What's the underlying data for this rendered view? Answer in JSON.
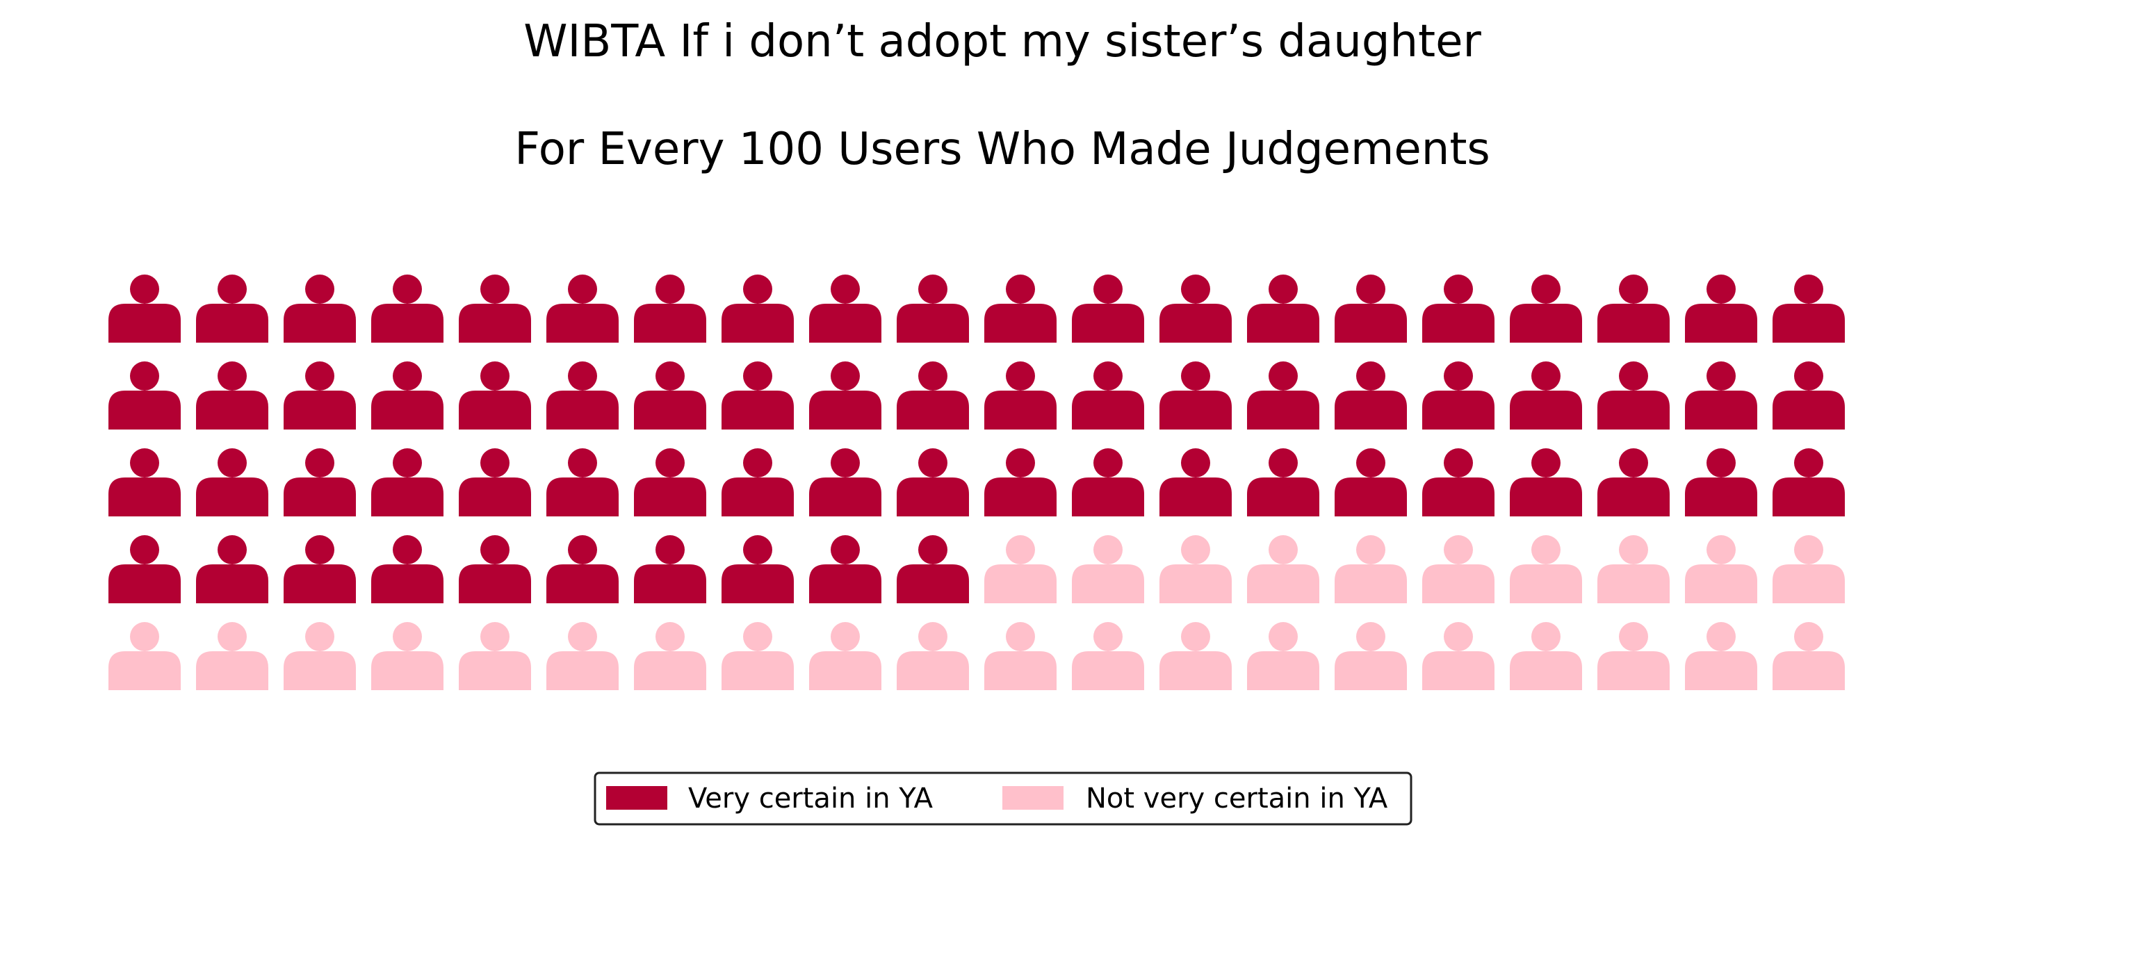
{
  "chart_data": {
    "type": "waffle",
    "title": "WIBTA If i don’t adopt my sister’s daughter",
    "subtitle": "For Every 100 Users Who Made Judgements",
    "rows": 5,
    "columns": 20,
    "total": 100,
    "icon": "person-icon",
    "series": [
      {
        "name": "Very certain in YA",
        "value": 70,
        "color": "#b30033"
      },
      {
        "name": "Not very certain in YA",
        "value": 30,
        "color": "#ffc0cb"
      }
    ],
    "legend": {
      "position": "bottom-center",
      "columns": 2
    }
  }
}
